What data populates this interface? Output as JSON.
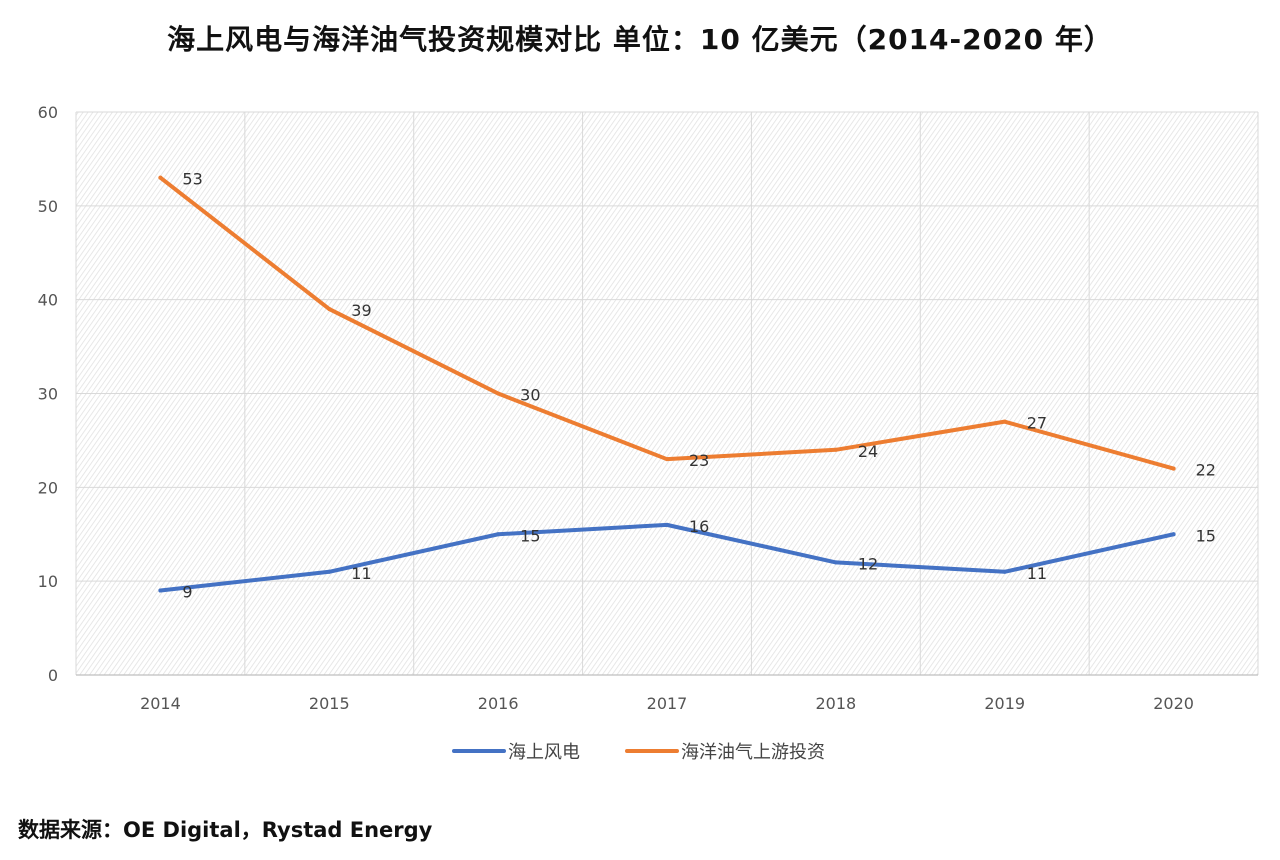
{
  "title": "海上风电与海洋油气投资规模对比 单位：10 亿美元（2014-2020 年）",
  "source": "数据来源：OE Digital，Rystad Energy",
  "chart_data": {
    "type": "line",
    "title": "海上风电与海洋油气投资规模对比 单位：10 亿美元（2014-2020 年）",
    "xlabel": "",
    "ylabel": "",
    "categories": [
      "2014",
      "2015",
      "2016",
      "2017",
      "2018",
      "2019",
      "2020"
    ],
    "ylim": [
      0,
      60
    ],
    "yticks": [
      0,
      10,
      20,
      30,
      40,
      50,
      60
    ],
    "grid": true,
    "legend": "bottom",
    "series": [
      {
        "name": "海上风电",
        "color": "#4472C4",
        "values": [
          9,
          11,
          15,
          16,
          12,
          11,
          15
        ]
      },
      {
        "name": "海洋油气上游投资",
        "color": "#ED7D31",
        "values": [
          53,
          39,
          30,
          23,
          24,
          27,
          22
        ]
      }
    ]
  }
}
